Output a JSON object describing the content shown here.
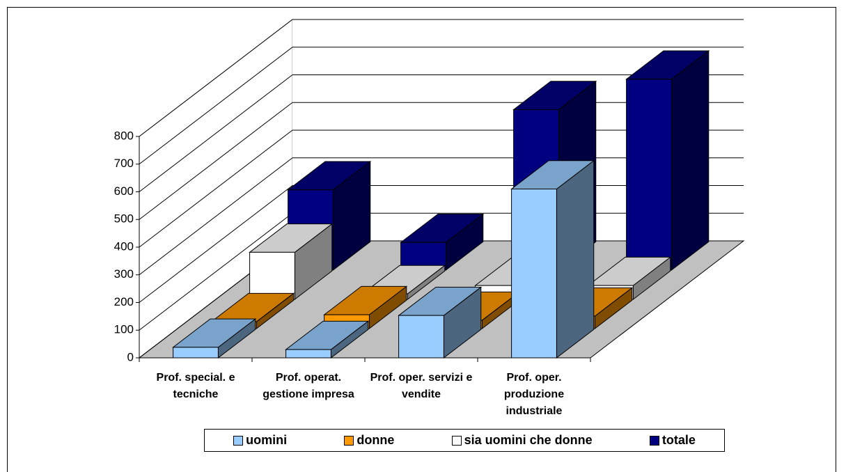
{
  "chart_data": {
    "type": "bar3d",
    "categories": [
      "Prof. special. e tecniche",
      "Prof. operat. gestione impresa",
      "Prof. oper. servizi e vendite",
      "Prof. oper. produzione industriale"
    ],
    "series": [
      {
        "name": "uomini",
        "color": "#99ccff",
        "values": [
          38,
          30,
          153,
          610
        ]
      },
      {
        "name": "donne",
        "color": "#ff9900",
        "values": [
          25,
          50,
          30,
          45
        ]
      },
      {
        "name": "sia uomini che donne",
        "color": "#ffffff",
        "values": [
          170,
          20,
          50,
          50
        ]
      },
      {
        "name": "totale",
        "color": "#000080",
        "values": [
          290,
          100,
          580,
          690
        ]
      }
    ],
    "ylim": [
      0,
      800
    ],
    "yticks": [
      0,
      100,
      200,
      300,
      400,
      500,
      600,
      700,
      800
    ],
    "grid": true,
    "legend": "bottom"
  }
}
